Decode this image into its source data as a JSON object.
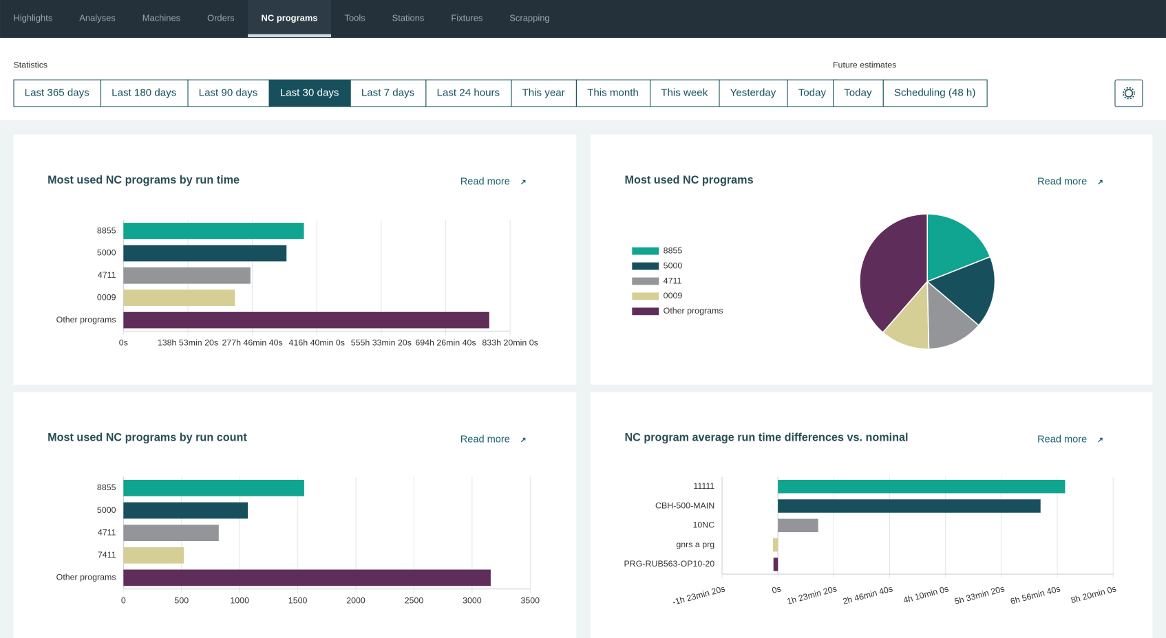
{
  "nav": {
    "tabs": [
      "Highlights",
      "Analyses",
      "Machines",
      "Orders",
      "NC programs",
      "Tools",
      "Stations",
      "Fixtures",
      "Scrapping"
    ],
    "active_index": 4
  },
  "statistics": {
    "label": "Statistics",
    "ranges": [
      "Last 365 days",
      "Last 180 days",
      "Last 90 days",
      "Last 30 days",
      "Last 7 days",
      "Last 24 hours",
      "This year",
      "This month",
      "This week",
      "Yesterday",
      "Today"
    ],
    "active_index": 3
  },
  "future_estimates": {
    "label": "Future estimates",
    "ranges": [
      "Today",
      "Scheduling (48 h)"
    ]
  },
  "read_more": "Read more",
  "chart_data": [
    {
      "type": "hbar",
      "title": "Most used NC programs by run time",
      "categories": [
        "8855",
        "5000",
        "4711",
        "0009",
        "Other programs"
      ],
      "values": [
        1400000,
        1265000,
        985000,
        865000,
        2838000
      ],
      "colors": [
        "#0fa590",
        "#17505c",
        "#939598",
        "#d6cf95",
        "#5f2d5a"
      ],
      "xlim": [
        0,
        3000000
      ],
      "xticks": [
        {
          "value": 0,
          "label": "0s"
        },
        {
          "value": 500000,
          "label": "138h 53min 20s"
        },
        {
          "value": 1000000,
          "label": "277h 46min 40s"
        },
        {
          "value": 1500000,
          "label": "416h 40min 0s"
        },
        {
          "value": 2000000,
          "label": "555h 33min 20s"
        },
        {
          "value": 2500000,
          "label": "694h 26min 40s"
        },
        {
          "value": 3000000,
          "label": "833h 20min 0s"
        }
      ],
      "grid": true
    },
    {
      "type": "pie",
      "title": "Most used NC programs",
      "categories": [
        "8855",
        "5000",
        "4711",
        "0009",
        "Other programs"
      ],
      "values": [
        1400000,
        1265000,
        985000,
        865000,
        2838000
      ],
      "colors": [
        "#0fa590",
        "#17505c",
        "#939598",
        "#d6cf95",
        "#5f2d5a"
      ]
    },
    {
      "type": "hbar",
      "title": "Most used NC programs by run count",
      "categories": [
        "8855",
        "5000",
        "4711",
        "7411",
        "Other programs"
      ],
      "values": [
        1555,
        1070,
        820,
        520,
        3160
      ],
      "colors": [
        "#0fa590",
        "#17505c",
        "#939598",
        "#d6cf95",
        "#5f2d5a"
      ],
      "xlim": [
        0,
        3500
      ],
      "xticks": [
        0,
        500,
        1000,
        1500,
        2000,
        2500,
        3000,
        3500
      ],
      "grid": true
    },
    {
      "type": "hbar",
      "title": "NC program average run time differences vs. nominal",
      "categories": [
        "11111",
        "CBH-500-MAIN",
        "10NC",
        "gnrs a prg",
        "PRG-RUB563-OP10-20"
      ],
      "values": [
        25700,
        23500,
        3600,
        -450,
        -400
      ],
      "colors": [
        "#0fa590",
        "#17505c",
        "#939598",
        "#d6cf95",
        "#5f2d5a"
      ],
      "xlim": [
        -5000,
        30000
      ],
      "xticks": [
        {
          "value": -5000,
          "label": "-1h 23min 20s"
        },
        {
          "value": 0,
          "label": "0s"
        },
        {
          "value": 5000,
          "label": "1h 23min 20s"
        },
        {
          "value": 10000,
          "label": "2h 46min 40s"
        },
        {
          "value": 15000,
          "label": "4h 10min 0s"
        },
        {
          "value": 20000,
          "label": "5h 33min 20s"
        },
        {
          "value": 25000,
          "label": "6h 56min 40s"
        },
        {
          "value": 30000,
          "label": "8h 20min 0s"
        }
      ],
      "grid": true
    }
  ]
}
